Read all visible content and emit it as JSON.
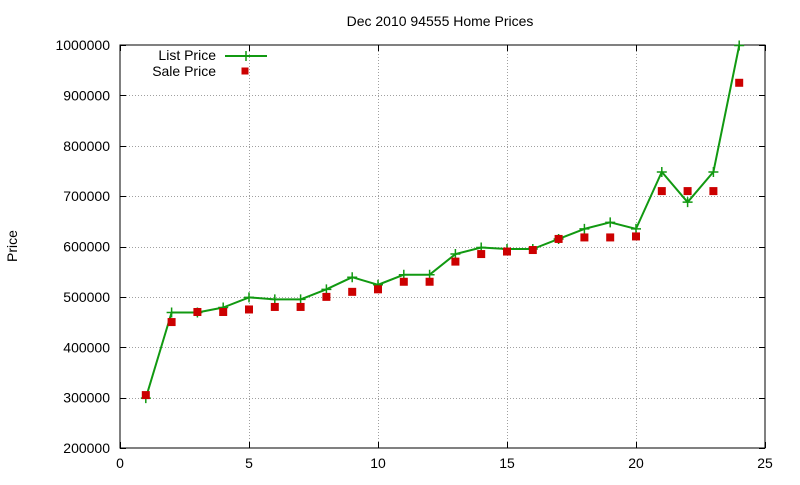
{
  "chart_data": {
    "type": "line",
    "title": "Dec 2010 94555 Home Prices",
    "xlabel": "",
    "ylabel": "Price",
    "xlim": [
      0,
      25
    ],
    "ylim": [
      200000,
      1000000
    ],
    "x_ticks": [
      0,
      5,
      10,
      15,
      20,
      25
    ],
    "y_ticks": [
      200000,
      300000,
      400000,
      500000,
      600000,
      700000,
      800000,
      900000,
      1000000
    ],
    "x_tick_labels": [
      "0",
      "5",
      "10",
      "15",
      "20",
      "25"
    ],
    "y_tick_labels": [
      "200000",
      "300000",
      "400000",
      "500000",
      "600000",
      "700000",
      "800000",
      "900000",
      "1000000"
    ],
    "grid": true,
    "legend_position": "top-left",
    "series": [
      {
        "name": "List Price",
        "style": "line-with-plus-markers",
        "color": "#119911",
        "x": [
          1,
          2,
          3,
          4,
          5,
          6,
          7,
          8,
          9,
          10,
          11,
          12,
          13,
          14,
          15,
          16,
          17,
          18,
          19,
          20,
          21,
          22,
          23,
          24
        ],
        "values": [
          299000,
          469000,
          469000,
          479000,
          499000,
          495000,
          495000,
          515000,
          539000,
          524000,
          544000,
          544000,
          585000,
          598000,
          595000,
          595000,
          615000,
          635000,
          648000,
          635000,
          748000,
          688000,
          748000,
          999000
        ]
      },
      {
        "name": "Sale Price",
        "style": "square-markers",
        "color": "#cc0000",
        "x": [
          1,
          2,
          3,
          4,
          5,
          6,
          7,
          8,
          9,
          10,
          11,
          12,
          13,
          14,
          15,
          16,
          17,
          18,
          19,
          20,
          21,
          22,
          23,
          24
        ],
        "values": [
          305000,
          450000,
          470000,
          470000,
          475000,
          480000,
          480000,
          500000,
          510000,
          515000,
          530000,
          530000,
          570000,
          585000,
          590000,
          593000,
          615000,
          618000,
          618000,
          620000,
          710000,
          710000,
          710000,
          925000
        ]
      }
    ]
  }
}
